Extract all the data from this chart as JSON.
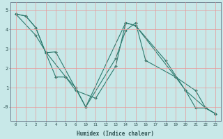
{
  "title": "",
  "xlabel": "Humidex (Indice chaleur)",
  "bg_color": "#c8e8e8",
  "line_color": "#2d7a6e",
  "grid_color": "#e89898",
  "ylim": [
    -0.7,
    5.4
  ],
  "yticks": [
    0,
    1,
    2,
    3,
    4,
    5
  ],
  "ytick_labels": [
    "-0",
    "1",
    "2",
    "3",
    "4",
    "5"
  ],
  "x_labels": [
    "0",
    "1",
    "2",
    "3",
    "4",
    "5",
    "6",
    "10",
    "11",
    "12",
    "13",
    "14",
    "15",
    "16",
    "17",
    "18",
    "19",
    "20",
    "21",
    "22",
    "23"
  ],
  "series": [
    {
      "xi": [
        0,
        1,
        2,
        3,
        4,
        7,
        11,
        12,
        16,
        18,
        19,
        20
      ],
      "y": [
        4.8,
        4.7,
        4.1,
        2.8,
        2.85,
        0.0,
        4.35,
        4.2,
        1.55,
        0.85,
        -0.05,
        -0.35
      ]
    },
    {
      "xi": [
        0,
        1,
        2,
        3,
        4,
        5,
        6,
        7,
        10,
        11,
        12,
        13,
        16,
        17,
        18,
        19,
        20
      ],
      "y": [
        4.8,
        4.7,
        4.1,
        2.8,
        1.55,
        1.55,
        1.0,
        0.0,
        2.5,
        3.95,
        4.35,
        2.4,
        1.55,
        0.85,
        -0.05,
        -0.05,
        -0.35
      ]
    },
    {
      "xi": [
        0,
        2,
        3,
        5,
        6,
        8,
        10,
        11,
        12,
        15,
        17,
        19,
        20
      ],
      "y": [
        4.8,
        3.7,
        2.85,
        1.55,
        0.85,
        0.45,
        2.1,
        4.35,
        4.2,
        2.4,
        0.85,
        -0.05,
        -0.35
      ]
    }
  ]
}
